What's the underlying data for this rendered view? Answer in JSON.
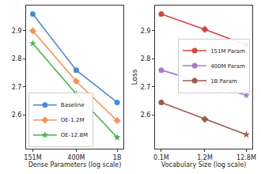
{
  "chart_data": [
    {
      "type": "line",
      "x_label": "Dense Parameters (log scale)",
      "x": [
        151000000,
        400000000,
        1000000000
      ],
      "xlim": [
        130000000,
        1150000000
      ],
      "xticks": [
        {
          "value": 151000000,
          "label": "151M"
        },
        {
          "value": 400000000,
          "label": "400M"
        },
        {
          "value": 1000000000,
          "label": "1B"
        }
      ],
      "ylim": [
        2.48,
        2.99
      ],
      "yticks": [
        2.6,
        2.7,
        2.8,
        2.9
      ],
      "log": "x",
      "grid": false,
      "legend": "lower left",
      "series": [
        {
          "name": "Baseline",
          "color": "#4a8ad4",
          "marker": "circle",
          "values": [
            2.96,
            2.76,
            2.645
          ]
        },
        {
          "name": "OE-1.2M",
          "color": "#f0955a",
          "marker": "diamond",
          "values": [
            2.9,
            2.72,
            2.58
          ]
        },
        {
          "name": "OE-12.8M",
          "color": "#4caf50",
          "marker": "star",
          "values": [
            2.855,
            2.675,
            2.52
          ]
        }
      ]
    },
    {
      "type": "line",
      "x_label": "Vocabulary Size (log scale)",
      "y_label": "Loss",
      "x": [
        0.1,
        1.2,
        12.8
      ],
      "xlim": [
        0.07,
        18
      ],
      "xticks": [
        {
          "value": 0.1,
          "label": "0.1M"
        },
        {
          "value": 1.2,
          "label": "1.2M"
        },
        {
          "value": 12.8,
          "label": "12.8M"
        }
      ],
      "ylim": [
        2.48,
        2.99
      ],
      "yticks": [
        2.6,
        2.7,
        2.8,
        2.9
      ],
      "log": "x",
      "grid": false,
      "legend": "right",
      "marker": [
        "circle",
        "diamond",
        "star"
      ],
      "series": [
        {
          "name": "151M Param",
          "color": "#d6453d",
          "values": [
            2.96,
            2.905,
            2.85
          ]
        },
        {
          "name": "400M Param",
          "color": "#a57bc8",
          "values": [
            2.76,
            2.715,
            2.67
          ]
        },
        {
          "name": "1B Param",
          "color": "#9a5b4d",
          "values": [
            2.645,
            2.585,
            2.53
          ]
        }
      ]
    }
  ]
}
